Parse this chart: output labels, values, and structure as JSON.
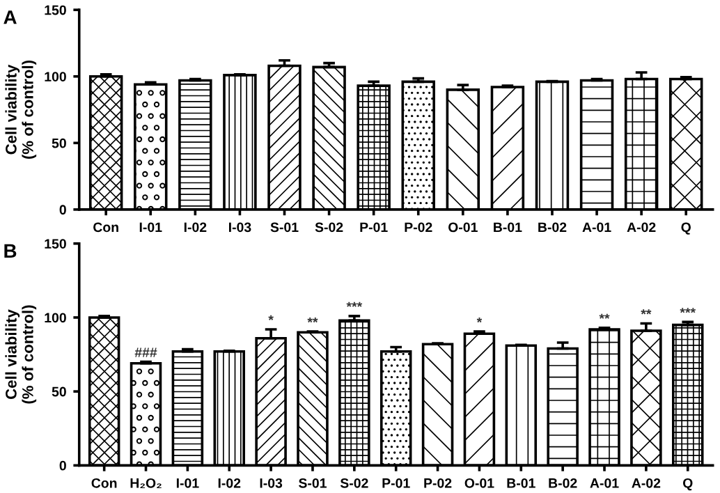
{
  "chart_data": [
    {
      "type": "bar",
      "ylabel": "Cell viability\n(% of control)",
      "categories": [
        "Con",
        "I-01",
        "I-02",
        "I-03",
        "S-01",
        "S-02",
        "P-01",
        "P-02",
        "O-01",
        "B-01",
        "B-02",
        "A-01",
        "A-02",
        "Q"
      ],
      "values": [
        100,
        94,
        97,
        101,
        108,
        107,
        93,
        96,
        90,
        92,
        96,
        97,
        98,
        98
      ],
      "errors": [
        [
          100,
          101.5
        ],
        [
          94,
          95.5
        ],
        [
          97,
          98
        ],
        [
          101,
          101.5
        ],
        [
          108,
          112
        ],
        [
          107,
          110
        ],
        [
          93,
          96
        ],
        [
          96,
          98.5
        ],
        [
          90,
          93.5
        ],
        [
          92,
          93
        ],
        [
          96,
          96.5
        ],
        [
          97,
          98
        ],
        [
          98,
          103
        ],
        [
          98,
          99.5
        ]
      ],
      "color": "#000000",
      "ylim": [
        0,
        150
      ],
      "yticks": [
        0,
        50,
        100,
        150
      ],
      "grid": false,
      "legend": false,
      "annotations": [
        "A"
      ]
    },
    {
      "type": "bar",
      "ylabel": "Cell viability\n(% of control)",
      "categories": [
        "Con",
        "H₂O₂",
        "I-01",
        "I-02",
        "I-03",
        "S-01",
        "S-02",
        "P-01",
        "P-02",
        "O-01",
        "B-01",
        "B-02",
        "A-01",
        "A-02",
        "Q"
      ],
      "values": [
        100,
        69,
        77,
        77,
        86,
        90,
        98,
        77,
        82,
        89,
        81,
        79,
        92,
        91,
        95
      ],
      "errors": [
        [
          100,
          101
        ],
        [
          69,
          70
        ],
        [
          77,
          78.5
        ],
        [
          77,
          77.5
        ],
        [
          86,
          92
        ],
        [
          90,
          90.5
        ],
        [
          98,
          101
        ],
        [
          77,
          80
        ],
        [
          82,
          82.5
        ],
        [
          89,
          90.5
        ],
        [
          81,
          81.5
        ],
        [
          79,
          83
        ],
        [
          92,
          93
        ],
        [
          91,
          96
        ],
        [
          95,
          97
        ]
      ],
      "color": "#000000",
      "ylim": [
        0,
        150
      ],
      "yticks": [
        0,
        50,
        100,
        150
      ],
      "grid": false,
      "legend": false,
      "annotations": [
        "B",
        {
          "text": "###",
          "x": "H₂O₂",
          "y": 70
        },
        {
          "text": "*",
          "x": "I-03",
          "y": 92
        },
        {
          "text": "**",
          "x": "S-01",
          "y": 90.5
        },
        {
          "text": "***",
          "x": "S-02",
          "y": 101
        },
        {
          "text": "*",
          "x": "O-01",
          "y": 90.5
        },
        {
          "text": "**",
          "x": "A-01",
          "y": 93
        },
        {
          "text": "**",
          "x": "A-02",
          "y": 96
        },
        {
          "text": "***",
          "x": "Q",
          "y": 97
        }
      ]
    }
  ]
}
